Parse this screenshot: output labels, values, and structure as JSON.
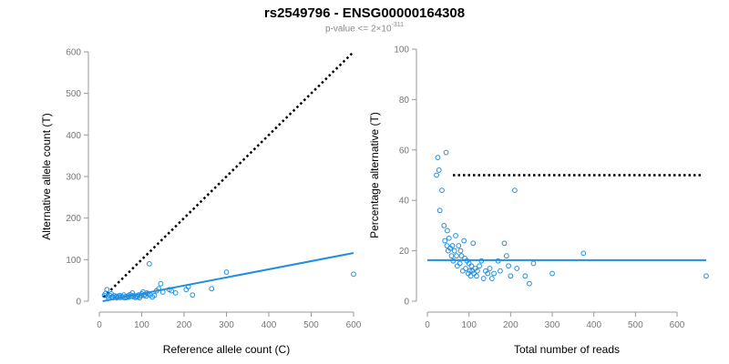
{
  "title": "rs2549796 - ENSG00000164308",
  "subtitle": {
    "prefix": "p-value <= 2×10",
    "exponent": "-311"
  },
  "colors": {
    "points": "#1f8fe0",
    "regression": "#1f8fe0",
    "reference_line": "#000000",
    "axis": "#9a9a9a",
    "tick_text": "#777777"
  },
  "chart_data": [
    {
      "type": "scatter",
      "xlabel": "Reference allele count (C)",
      "ylabel": "Alternative allele count (T)",
      "xlim": [
        0,
        600
      ],
      "ylim": [
        0,
        600
      ],
      "xticks": [
        0,
        100,
        200,
        300,
        400,
        500,
        600
      ],
      "yticks": [
        0,
        100,
        200,
        300,
        400,
        500,
        600
      ],
      "identity_line": {
        "x": [
          10,
          600
        ],
        "y": [
          10,
          600
        ],
        "style": "dotted"
      },
      "regression_line": {
        "x": [
          8,
          600
        ],
        "y": [
          0,
          116
        ]
      },
      "points": [
        [
          12,
          14
        ],
        [
          15,
          19
        ],
        [
          18,
          28
        ],
        [
          20,
          12
        ],
        [
          22,
          8
        ],
        [
          25,
          14
        ],
        [
          28,
          18
        ],
        [
          30,
          10
        ],
        [
          33,
          9
        ],
        [
          35,
          13
        ],
        [
          38,
          10
        ],
        [
          40,
          12
        ],
        [
          42,
          8
        ],
        [
          45,
          11
        ],
        [
          48,
          14
        ],
        [
          50,
          9
        ],
        [
          52,
          12
        ],
        [
          55,
          10
        ],
        [
          58,
          15
        ],
        [
          60,
          8
        ],
        [
          62,
          11
        ],
        [
          65,
          9
        ],
        [
          68,
          13
        ],
        [
          70,
          10
        ],
        [
          72,
          16
        ],
        [
          75,
          12
        ],
        [
          78,
          20
        ],
        [
          80,
          11
        ],
        [
          82,
          14
        ],
        [
          85,
          9
        ],
        [
          88,
          12
        ],
        [
          90,
          10
        ],
        [
          92,
          15
        ],
        [
          95,
          8
        ],
        [
          98,
          13
        ],
        [
          100,
          18
        ],
        [
          103,
          22
        ],
        [
          105,
          14
        ],
        [
          108,
          16
        ],
        [
          110,
          12
        ],
        [
          112,
          20
        ],
        [
          115,
          18
        ],
        [
          118,
          90
        ],
        [
          120,
          15
        ],
        [
          125,
          10
        ],
        [
          130,
          14
        ],
        [
          135,
          25
        ],
        [
          140,
          30
        ],
        [
          145,
          42
        ],
        [
          150,
          22
        ],
        [
          165,
          28
        ],
        [
          170,
          25
        ],
        [
          180,
          20
        ],
        [
          205,
          28
        ],
        [
          210,
          35
        ],
        [
          220,
          15
        ],
        [
          265,
          30
        ],
        [
          300,
          70
        ],
        [
          600,
          65
        ]
      ]
    },
    {
      "type": "scatter",
      "xlabel": "Total number of reads",
      "ylabel": "Percentage alternative (T)",
      "xlim": [
        0,
        670
      ],
      "ylim": [
        0,
        100
      ],
      "xticks": [
        0,
        100,
        200,
        300,
        400,
        500,
        600
      ],
      "yticks": [
        0,
        20,
        40,
        60,
        80,
        100
      ],
      "reference_hline": {
        "y": 50,
        "style": "dotted"
      },
      "regression_hline": {
        "y": 16.3
      },
      "points": [
        [
          22,
          50
        ],
        [
          25,
          57
        ],
        [
          28,
          52
        ],
        [
          30,
          36
        ],
        [
          35,
          44
        ],
        [
          40,
          30
        ],
        [
          42,
          24
        ],
        [
          45,
          59
        ],
        [
          47,
          22
        ],
        [
          48,
          28
        ],
        [
          50,
          20
        ],
        [
          52,
          25
        ],
        [
          55,
          21
        ],
        [
          58,
          18
        ],
        [
          60,
          22
        ],
        [
          62,
          16
        ],
        [
          65,
          20
        ],
        [
          68,
          26
        ],
        [
          70,
          18
        ],
        [
          72,
          14
        ],
        [
          75,
          22
        ],
        [
          78,
          15
        ],
        [
          80,
          20
        ],
        [
          82,
          18
        ],
        [
          85,
          12
        ],
        [
          88,
          24
        ],
        [
          90,
          17
        ],
        [
          92,
          13
        ],
        [
          95,
          16
        ],
        [
          98,
          11
        ],
        [
          100,
          15
        ],
        [
          102,
          12
        ],
        [
          104,
          10
        ],
        [
          106,
          14
        ],
        [
          108,
          12
        ],
        [
          110,
          23
        ],
        [
          112,
          11
        ],
        [
          115,
          13
        ],
        [
          118,
          10
        ],
        [
          120,
          12
        ],
        [
          125,
          14
        ],
        [
          130,
          16
        ],
        [
          135,
          9
        ],
        [
          140,
          12
        ],
        [
          145,
          11
        ],
        [
          150,
          13
        ],
        [
          155,
          9
        ],
        [
          160,
          11
        ],
        [
          170,
          16
        ],
        [
          175,
          12
        ],
        [
          185,
          23
        ],
        [
          190,
          18
        ],
        [
          195,
          14
        ],
        [
          200,
          10
        ],
        [
          210,
          44
        ],
        [
          215,
          13
        ],
        [
          235,
          10
        ],
        [
          245,
          7
        ],
        [
          255,
          15
        ],
        [
          300,
          11
        ],
        [
          375,
          19
        ],
        [
          670,
          10
        ]
      ]
    }
  ]
}
